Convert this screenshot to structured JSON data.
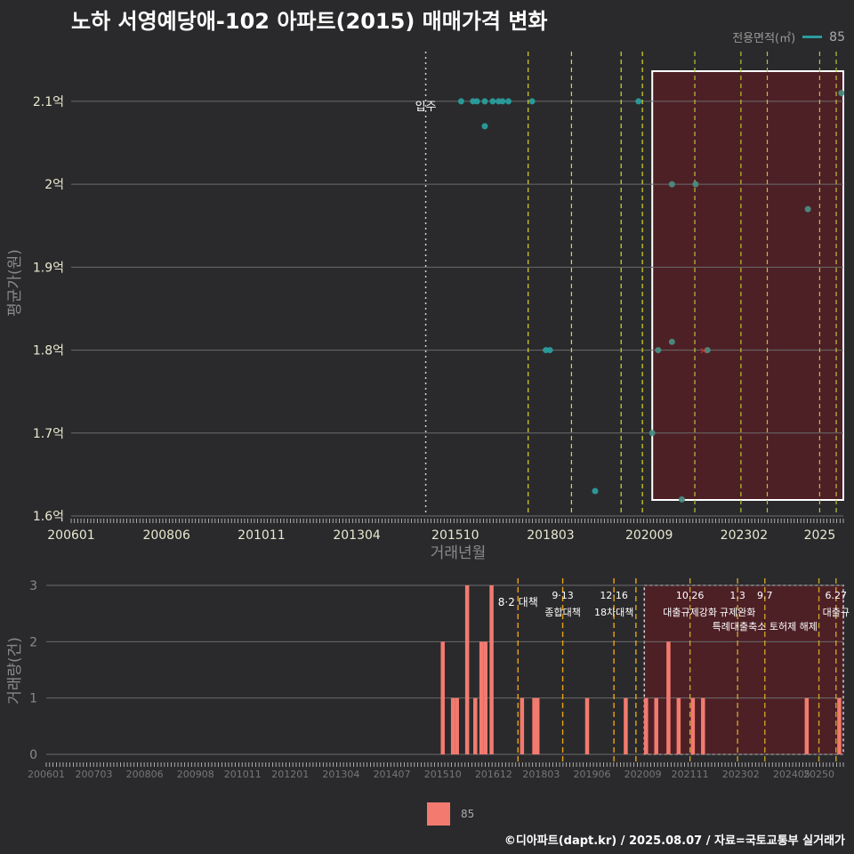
{
  "title": "노하 서영예당애-102 아파트(2015) 매매가격 변화",
  "legend_top": {
    "label": "전용면적(㎡)",
    "value": "85",
    "color": "#2a9d9d"
  },
  "legend_bottom": {
    "value": "85",
    "color": "#f37a6f"
  },
  "credit": "©디아파트(dapt.kr) / 2025.08.07 / 자료=국토교통부 실거래가",
  "chart_data": [
    {
      "type": "scatter",
      "name": "price",
      "title": "노하 서영예당애-102 아파트(2015) 매매가격 변화",
      "xlabel": "거래년월",
      "ylabel": "평균가(원)",
      "x_range": [
        2006.0,
        2025.6
      ],
      "ylim": [
        1.6,
        2.16
      ],
      "yticks": [
        1.6,
        1.7,
        1.8,
        1.9,
        2.0,
        2.1
      ],
      "ytick_labels": [
        "1.6억",
        "1.7억",
        "1.8억",
        "1.9억",
        "2억",
        "2.1억"
      ],
      "xticks": [
        2006.0,
        2008.42,
        2010.83,
        2013.25,
        2015.75,
        2018.17,
        2020.67,
        2023.08,
        2025.0
      ],
      "xtick_labels": [
        "200601",
        "200806",
        "201011",
        "201304",
        "201510",
        "201803",
        "202009",
        "202302",
        "2025"
      ],
      "annotation": {
        "label": "입주",
        "x": 2015.0
      },
      "highlight_range": [
        2020.75,
        2025.6
      ],
      "points": [
        {
          "x": 2015.9,
          "y": 2.1
        },
        {
          "x": 2016.2,
          "y": 2.1
        },
        {
          "x": 2016.3,
          "y": 2.1
        },
        {
          "x": 2016.5,
          "y": 2.1
        },
        {
          "x": 2016.5,
          "y": 2.07
        },
        {
          "x": 2016.7,
          "y": 2.1
        },
        {
          "x": 2016.85,
          "y": 2.1
        },
        {
          "x": 2016.95,
          "y": 2.1
        },
        {
          "x": 2017.1,
          "y": 2.1
        },
        {
          "x": 2017.7,
          "y": 2.1
        },
        {
          "x": 2018.05,
          "y": 1.8
        },
        {
          "x": 2018.15,
          "y": 1.8
        },
        {
          "x": 2019.3,
          "y": 1.63
        },
        {
          "x": 2020.4,
          "y": 2.1
        },
        {
          "x": 2020.75,
          "y": 1.7
        },
        {
          "x": 2020.9,
          "y": 1.8
        },
        {
          "x": 2021.25,
          "y": 1.81
        },
        {
          "x": 2021.25,
          "y": 2.0
        },
        {
          "x": 2021.5,
          "y": 1.62
        },
        {
          "x": 2021.85,
          "y": 2.0
        },
        {
          "x": 2022.15,
          "y": 1.8
        },
        {
          "x": 2024.7,
          "y": 1.97
        },
        {
          "x": 2025.55,
          "y": 2.11
        }
      ],
      "red_mark": {
        "x": 2022.05,
        "y": 1.8
      }
    },
    {
      "type": "bar",
      "name": "volume",
      "ylabel": "거래량(건)",
      "x_range": [
        2006.0,
        2025.6
      ],
      "ylim": [
        0,
        3
      ],
      "yticks": [
        0,
        1,
        2,
        3
      ],
      "ytick_labels": [
        "0",
        "1",
        "2",
        "3"
      ],
      "xticks": [
        2006.0,
        2007.17,
        2008.42,
        2009.67,
        2010.83,
        2012.0,
        2013.25,
        2014.5,
        2015.75,
        2017.0,
        2018.17,
        2019.42,
        2020.67,
        2021.83,
        2023.08,
        2024.33,
        2025.0
      ],
      "xtick_labels": [
        "200601",
        "200703",
        "200806",
        "200908",
        "201011",
        "201201",
        "201304",
        "201407",
        "201510",
        "201612",
        "201803",
        "201906",
        "202009",
        "202111",
        "202302",
        "202405",
        "20250"
      ],
      "highlight_range": [
        2020.75,
        2025.6
      ],
      "bars": [
        {
          "x": 2015.75,
          "v": 2
        },
        {
          "x": 2016.0,
          "v": 1
        },
        {
          "x": 2016.1,
          "v": 1
        },
        {
          "x": 2016.35,
          "v": 3
        },
        {
          "x": 2016.55,
          "v": 1
        },
        {
          "x": 2016.7,
          "v": 2
        },
        {
          "x": 2016.8,
          "v": 2
        },
        {
          "x": 2016.95,
          "v": 3
        },
        {
          "x": 2017.7,
          "v": 1
        },
        {
          "x": 2018.0,
          "v": 1
        },
        {
          "x": 2018.08,
          "v": 1
        },
        {
          "x": 2019.3,
          "v": 1
        },
        {
          "x": 2020.25,
          "v": 1
        },
        {
          "x": 2020.75,
          "v": 1
        },
        {
          "x": 2021.0,
          "v": 1
        },
        {
          "x": 2021.3,
          "v": 2
        },
        {
          "x": 2021.55,
          "v": 1
        },
        {
          "x": 2021.9,
          "v": 1
        },
        {
          "x": 2022.15,
          "v": 1
        },
        {
          "x": 2024.7,
          "v": 1
        },
        {
          "x": 2025.5,
          "v": 1
        }
      ],
      "policies": [
        {
          "x": 2017.6,
          "label": "8·2 대책",
          "color": "#e8a317"
        },
        {
          "x": 2018.7,
          "label": "9·13",
          "label2": "종합대책",
          "color": "#e8a317"
        },
        {
          "x": 2019.96,
          "label": "12·16",
          "label2": "18차대책",
          "color": "#e8a317"
        },
        {
          "x": 2020.5,
          "label": "",
          "color": "#e8a317"
        },
        {
          "x": 2021.83,
          "label": "10.26",
          "label2": "대출규제강화",
          "color": "#c8a028"
        },
        {
          "x": 2023.0,
          "label": "1.3",
          "label2": "규제완화",
          "color": "#c8a028"
        },
        {
          "x": 2023.67,
          "label": "9.7",
          "label2": "특례대출축소 토허제 해제",
          "color": "#c8a028"
        },
        {
          "x": 2025.0,
          "label": "",
          "color": "#c8a028"
        },
        {
          "x": 2025.42,
          "label": "6.27",
          "label2": "대출규",
          "color": "#c8a028"
        }
      ]
    }
  ]
}
